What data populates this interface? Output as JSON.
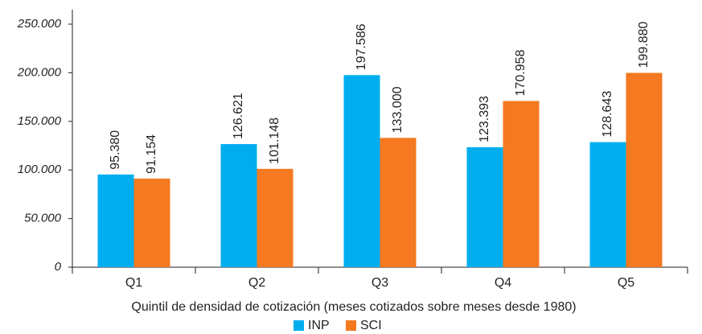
{
  "chart_data": {
    "type": "bar",
    "xlabel": "Quintil de densidad de cotización (meses cotizados sobre meses desde 1980)",
    "categories": [
      "Q1",
      "Q2",
      "Q3",
      "Q4",
      "Q5"
    ],
    "series": [
      {
        "name": "INP",
        "color": "#00aeef",
        "values": [
          95380,
          126621,
          197586,
          123393,
          128643
        ],
        "value_labels": [
          "95.380",
          "126.621",
          "197.586",
          "123.393",
          "128.643"
        ]
      },
      {
        "name": "SCI",
        "color": "#f47920",
        "values": [
          91154,
          101148,
          133000,
          170958,
          199880
        ],
        "value_labels": [
          "91.154",
          "101.148",
          "133.000",
          "170.958",
          "199.880"
        ]
      }
    ],
    "ylim": [
      0,
      250000
    ],
    "yticks": [
      0,
      {
        "value": 50000,
        "label": "50.000"
      },
      {
        "value": 100000,
        "label": "100.000"
      },
      {
        "value": 150000,
        "label": "150.000"
      },
      {
        "value": 200000,
        "label": "200.000"
      },
      {
        "value": 250000,
        "label": "250.000"
      }
    ],
    "legend": "bottom"
  }
}
